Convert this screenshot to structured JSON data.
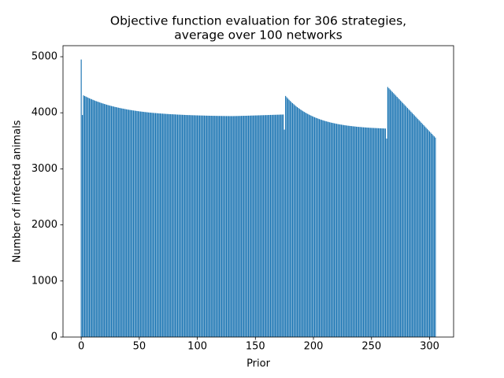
{
  "chart_data": {
    "type": "bar",
    "title": [
      "Objective function evaluation for 306 strategies,",
      "average over 100 networks"
    ],
    "xlabel": "Prior",
    "ylabel": "Number of infected animals",
    "color": "#1f77b4",
    "bar_width": 0.8,
    "x": [
      0,
      1,
      2,
      3,
      4,
      5,
      6,
      7,
      8,
      9,
      10,
      11,
      12,
      13,
      14,
      15,
      16,
      17,
      18,
      19,
      20,
      21,
      22,
      23,
      24,
      25,
      26,
      27,
      28,
      29,
      30,
      31,
      32,
      33,
      34,
      35,
      36,
      37,
      38,
      39,
      40,
      41,
      42,
      43,
      44,
      45,
      46,
      47,
      48,
      49,
      50,
      51,
      52,
      53,
      54,
      55,
      56,
      57,
      58,
      59,
      60,
      61,
      62,
      63,
      64,
      65,
      66,
      67,
      68,
      69,
      70,
      71,
      72,
      73,
      74,
      75,
      76,
      77,
      78,
      79,
      80,
      81,
      82,
      83,
      84,
      85,
      86,
      87,
      88,
      89,
      90,
      91,
      92,
      93,
      94,
      95,
      96,
      97,
      98,
      99,
      100,
      101,
      102,
      103,
      104,
      105,
      106,
      107,
      108,
      109,
      110,
      111,
      112,
      113,
      114,
      115,
      116,
      117,
      118,
      119,
      120,
      121,
      122,
      123,
      124,
      125,
      126,
      127,
      128,
      129,
      130,
      131,
      132,
      133,
      134,
      135,
      136,
      137,
      138,
      139,
      140,
      141,
      142,
      143,
      144,
      145,
      146,
      147,
      148,
      149,
      150,
      151,
      152,
      153,
      154,
      155,
      156,
      157,
      158,
      159,
      160,
      161,
      162,
      163,
      164,
      165,
      166,
      167,
      168,
      169,
      170,
      171,
      172,
      173,
      174,
      175,
      176,
      177,
      178,
      179,
      180,
      181,
      182,
      183,
      184,
      185,
      186,
      187,
      188,
      189,
      190,
      191,
      192,
      193,
      194,
      195,
      196,
      197,
      198,
      199,
      200,
      201,
      202,
      203,
      204,
      205,
      206,
      207,
      208,
      209,
      210,
      211,
      212,
      213,
      214,
      215,
      216,
      217,
      218,
      219,
      220,
      221,
      222,
      223,
      224,
      225,
      226,
      227,
      228,
      229,
      230,
      231,
      232,
      233,
      234,
      235,
      236,
      237,
      238,
      239,
      240,
      241,
      242,
      243,
      244,
      245,
      246,
      247,
      248,
      249,
      250,
      251,
      252,
      253,
      254,
      255,
      256,
      257,
      258,
      259,
      260,
      261,
      262,
      263,
      264,
      265,
      266,
      267,
      268,
      269,
      270,
      271,
      272,
      273,
      274,
      275,
      276,
      277,
      278,
      279,
      280,
      281,
      282,
      283,
      284,
      285,
      286,
      287,
      288,
      289,
      290,
      291,
      292,
      293,
      294,
      295,
      296,
      297,
      298,
      299,
      300,
      301,
      302,
      303,
      304,
      305
    ],
    "values": [
      4950,
      3960,
      4310,
      4299,
      4289,
      4279,
      4269,
      4259,
      4250,
      4241,
      4232,
      4224,
      4215,
      4207,
      4200,
      4192,
      4185,
      4177,
      4170,
      4164,
      4157,
      4151,
      4144,
      4138,
      4132,
      4127,
      4121,
      4116,
      4111,
      4105,
      4101,
      4096,
      4091,
      4087,
      4082,
      4078,
      4074,
      4070,
      4066,
      4062,
      4058,
      4054,
      4051,
      4048,
      4044,
      4041,
      4038,
      4035,
      4032,
      4029,
      4026,
      4023,
      4021,
      4018,
      4016,
      4013,
      4011,
      4009,
      4006,
      4004,
      4002,
      4000,
      3998,
      3996,
      3995,
      3993,
      3991,
      3989,
      3988,
      3986,
      3985,
      3983,
      3982,
      3980,
      3979,
      3978,
      3976,
      3975,
      3974,
      3973,
      3972,
      3971,
      3969,
      3968,
      3967,
      3966,
      3965,
      3964,
      3963,
      3962,
      3961,
      3960,
      3959,
      3959,
      3958,
      3957,
      3956,
      3956,
      3955,
      3954,
      3954,
      3953,
      3952,
      3952,
      3951,
      3951,
      3950,
      3949,
      3949,
      3948,
      3948,
      3947,
      3947,
      3946,
      3946,
      3946,
      3945,
      3945,
      3944,
      3944,
      3944,
      3943,
      3943,
      3943,
      3942,
      3942,
      3942,
      3942,
      3941,
      3941,
      3941,
      3941,
      3942,
      3942,
      3943,
      3943,
      3944,
      3944,
      3945,
      3946,
      3946,
      3947,
      3947,
      3948,
      3949,
      3949,
      3950,
      3951,
      3951,
      3952,
      3953,
      3953,
      3954,
      3955,
      3955,
      3956,
      3957,
      3957,
      3958,
      3959,
      3959,
      3960,
      3961,
      3962,
      3962,
      3963,
      3964,
      3964,
      3965,
      3966,
      3966,
      3967,
      3968,
      3968,
      3969,
      3700,
      4300,
      4277,
      4254,
      4232,
      4211,
      4191,
      4172,
      4154,
      4136,
      4119,
      4102,
      4087,
      4071,
      4057,
      4043,
      4029,
      4017,
      4004,
      3992,
      3981,
      3970,
      3959,
      3949,
      3939,
      3930,
      3921,
      3912,
      3904,
      3896,
      3888,
      3881,
      3874,
      3867,
      3860,
      3854,
      3848,
      3842,
      3837,
      3831,
      3826,
      3821,
      3817,
      3812,
      3808,
      3803,
      3799,
      3795,
      3792,
      3788,
      3785,
      3781,
      3778,
      3775,
      3772,
      3769,
      3767,
      3764,
      3762,
      3759,
      3757,
      3755,
      3752,
      3750,
      3748,
      3747,
      3745,
      3743,
      3741,
      3740,
      3738,
      3737,
      3735,
      3734,
      3732,
      3731,
      3730,
      3729,
      3728,
      3727,
      3726,
      3725,
      3724,
      3723,
      3722,
      3721,
      3720,
      3719,
      3540,
      4460,
      4438,
      4416,
      4394,
      4372,
      4350,
      4328,
      4306,
      4284,
      4262,
      4240,
      4218,
      4196,
      4174,
      4152,
      4130,
      4108,
      4086,
      4064,
      4042,
      4020,
      3998,
      3976,
      3954,
      3932,
      3910,
      3888,
      3866,
      3844,
      3822,
      3800,
      3778,
      3756,
      3734,
      3712,
      3690,
      3668,
      3646,
      3624,
      3602,
      3580,
      3558
    ],
    "xlim": [
      -15.7,
      320.7
    ],
    "ylim": [
      0,
      5197
    ],
    "xticks": [
      0,
      50,
      100,
      150,
      200,
      250,
      300
    ],
    "yticks": [
      0,
      1000,
      2000,
      3000,
      4000,
      5000
    ],
    "grid": false
  }
}
